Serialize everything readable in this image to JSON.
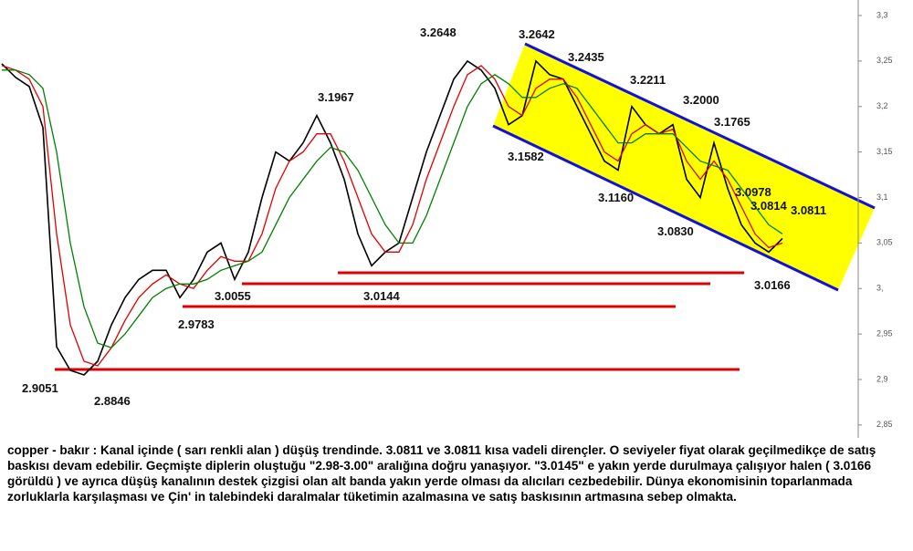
{
  "chart_data": {
    "type": "line",
    "x": [
      0,
      1,
      2,
      3,
      4,
      5,
      6,
      7,
      8,
      9,
      10,
      11,
      12,
      13,
      14,
      15,
      16,
      17,
      18,
      19,
      20,
      21,
      22,
      23,
      24,
      25,
      26,
      27,
      28,
      29,
      30,
      31,
      32,
      33,
      34,
      35,
      36,
      37,
      38,
      39,
      40,
      41,
      42,
      43,
      44,
      45,
      46,
      47,
      48,
      49,
      50,
      51,
      52,
      53,
      54,
      55,
      56,
      57
    ],
    "xlim": [
      0,
      62.6
    ],
    "series": [
      {
        "color": "#000000",
        "values": [
          3.247,
          3.232,
          3.222,
          3.177,
          2.936,
          2.91,
          2.905,
          2.92,
          2.96,
          2.99,
          3.01,
          3.02,
          3.02,
          2.99,
          3.01,
          3.04,
          3.05,
          3.01,
          3.04,
          3.1,
          3.15,
          3.14,
          3.16,
          3.19,
          3.16,
          3.12,
          3.06,
          3.025,
          3.04,
          3.05,
          3.1,
          3.15,
          3.19,
          3.23,
          3.25,
          3.24,
          3.22,
          3.18,
          3.19,
          3.25,
          3.235,
          3.23,
          3.2,
          3.17,
          3.14,
          3.13,
          3.2,
          3.18,
          3.17,
          3.18,
          3.12,
          3.1,
          3.16,
          3.11,
          3.07,
          3.05,
          3.04,
          3.055
        ]
      },
      {
        "color": "#e00000",
        "values": [
          3.245,
          3.24,
          3.23,
          3.2,
          3.06,
          2.96,
          2.92,
          2.915,
          2.935,
          2.965,
          2.99,
          3.005,
          3.015,
          3.005,
          3.0,
          3.02,
          3.035,
          3.03,
          3.03,
          3.06,
          3.11,
          3.14,
          3.15,
          3.17,
          3.17,
          3.14,
          3.1,
          3.06,
          3.04,
          3.04,
          3.07,
          3.12,
          3.16,
          3.2,
          3.235,
          3.245,
          3.23,
          3.2,
          3.19,
          3.22,
          3.23,
          3.23,
          3.21,
          3.18,
          3.15,
          3.14,
          3.17,
          3.18,
          3.17,
          3.175,
          3.14,
          3.12,
          3.14,
          3.12,
          3.09,
          3.06,
          3.045,
          3.05
        ]
      },
      {
        "color": "#008000",
        "values": [
          3.24,
          3.24,
          3.235,
          3.22,
          3.15,
          3.05,
          2.98,
          2.94,
          2.935,
          2.95,
          2.97,
          2.99,
          3.0,
          3.005,
          3.005,
          3.01,
          3.02,
          3.025,
          3.03,
          3.04,
          3.07,
          3.1,
          3.12,
          3.14,
          3.155,
          3.15,
          3.13,
          3.1,
          3.07,
          3.05,
          3.05,
          3.08,
          3.12,
          3.16,
          3.2,
          3.225,
          3.235,
          3.225,
          3.21,
          3.21,
          3.22,
          3.225,
          3.22,
          3.2,
          3.18,
          3.16,
          3.16,
          3.17,
          3.17,
          3.17,
          3.155,
          3.14,
          3.135,
          3.13,
          3.11,
          3.09,
          3.07,
          3.06
        ]
      }
    ],
    "ylim": [
      2.8268,
      3.3
    ],
    "yticks": [
      {
        "value": 3.3,
        "label": "3,3"
      },
      {
        "value": 3.25,
        "label": "3,25"
      },
      {
        "value": 3.2,
        "label": "3,2"
      },
      {
        "value": 3.15,
        "label": "3,15"
      },
      {
        "value": 3.1,
        "label": "3,1"
      },
      {
        "value": 3.05,
        "label": "3,05"
      },
      {
        "value": 3.0,
        "label": "3,"
      },
      {
        "value": 2.95,
        "label": "2,95"
      },
      {
        "value": 2.9,
        "label": "2,9"
      },
      {
        "value": 2.85,
        "label": "2,85"
      }
    ],
    "annotations": [
      "3.2648",
      "3.2642",
      "3.2435",
      "3.2211",
      "3.1967",
      "3.2000",
      "3.1765",
      "3.1582",
      "3.1160",
      "3.0978",
      "3.0814",
      "3.0811",
      "3.0830",
      "3.0055",
      "3.0144",
      "3.0166",
      "2.9783",
      "2.9051",
      "2.8846"
    ],
    "caption": "copper - bakır : Kanal içinde ( sarı renkli alan ) düşüş trendinde. 3.0811 ve 3.0811 kısa vadeli dirençler. O seviyeler fiyat olarak geçilmedikçe de satış baskısı devam edebilir. Geçmişte diplerin oluştuğu \"2.98-3.00\" aralığına doğru yanaşıyor. \"3.0145\" e yakın yerde durulmaya çalışıyor halen ( 3.0166 görüldü ) ve ayrıca düşüş kanalının destek çizgisi olan alt banda yakın yerde olması da alıcıları cezbedebilir. Dünya ekonomisinin toparlanmada zorluklarla karşılaşması ve Çin' in talebindeki daralmalar tüketimin azalmasına ve satış baskısının artmasına sebep olmakta."
  }
}
